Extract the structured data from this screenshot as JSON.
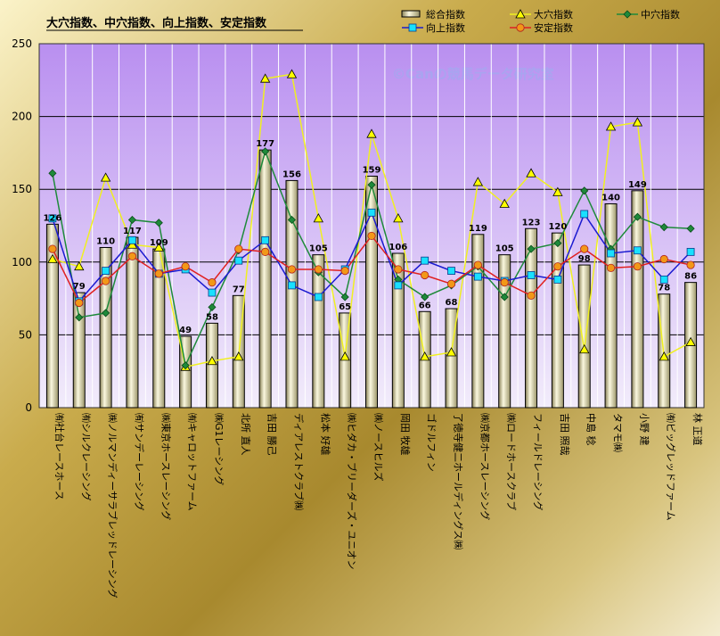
{
  "chart_data": {
    "type": "bar",
    "title": "大穴指数、中穴指数、向上指数、安定指数",
    "watermark": "©Canの競馬データ研究室",
    "ylim": [
      0,
      250
    ],
    "yticks": [
      "0",
      "50",
      "100",
      "150",
      "200",
      "250"
    ],
    "grid": true,
    "legend_position": "top-right",
    "categories": [
      "㈲社台レースホース",
      "㈲シルクレーシング",
      "㈱ノルマンディーサラブレッドレーシング",
      "㈲サンデーレーシング",
      "㈱東京ホースレーシング",
      "㈲キャロットファーム",
      "㈱G1レーシング",
      "北所 直人",
      "吉田 勝己",
      "ディアレストクラブ㈱",
      "松本 好雄",
      "㈱ヒダカ・ブリーダーズ・ユニオン",
      "㈱ノースヒルズ",
      "岡田 牧雄",
      "ゴドルフィン",
      "了徳寺健二ホールディングス㈱",
      "㈱京都ホースレーシング",
      "㈱ロードホースクラブ",
      "フィールドレーシング",
      "吉田 照哉",
      "中島 稔",
      "タマモ㈱",
      "小野 建",
      "㈲ビッグレッドファーム",
      "林 正道"
    ],
    "series": [
      {
        "name": "総合指数",
        "kind": "bar",
        "color": "#f4f1cf",
        "values": [
          126,
          79,
          110,
          117,
          109,
          49,
          58,
          77,
          177,
          156,
          105,
          65,
          159,
          106,
          66,
          68,
          119,
          105,
          123,
          120,
          98,
          140,
          149,
          78,
          86
        ],
        "labels": [
          "126",
          "79",
          "110",
          "117",
          "109",
          "49",
          "58",
          "77",
          "177",
          "156",
          "105",
          "65",
          "159",
          "106",
          "66",
          "68",
          "119",
          "105",
          "123",
          "120",
          "98",
          "140",
          "149",
          "78",
          "86"
        ]
      },
      {
        "name": "大穴指数",
        "kind": "line",
        "marker": "triangle",
        "color": "#ffff00",
        "stroke": "#f0f020",
        "values": [
          102,
          97,
          158,
          112,
          110,
          28,
          32,
          35,
          226,
          229,
          130,
          35,
          188,
          130,
          35,
          38,
          155,
          140,
          161,
          148,
          40,
          193,
          196,
          35,
          45
        ]
      },
      {
        "name": "中穴指数",
        "kind": "line",
        "marker": "diamond",
        "color": "#1e8a3a",
        "stroke": "#1e8a3a",
        "values": [
          161,
          62,
          65,
          129,
          127,
          29,
          69,
          108,
          176,
          129,
          93,
          76,
          153,
          88,
          76,
          84,
          97,
          76,
          109,
          113,
          149,
          109,
          131,
          124,
          123
        ]
      },
      {
        "name": "向上指数",
        "kind": "line",
        "marker": "square",
        "color": "#19e0ff",
        "stroke": "#1a1ad0",
        "values": [
          130,
          73,
          94,
          115,
          92,
          95,
          79,
          101,
          115,
          84,
          76,
          95,
          134,
          84,
          101,
          94,
          90,
          87,
          91,
          88,
          133,
          106,
          108,
          88,
          107
        ]
      },
      {
        "name": "安定指数",
        "kind": "line",
        "marker": "circle",
        "color": "#f29818",
        "stroke": "#e02020",
        "values": [
          109,
          72,
          87,
          104,
          92,
          97,
          86,
          109,
          107,
          95,
          95,
          94,
          118,
          95,
          91,
          85,
          98,
          86,
          77,
          97,
          109,
          96,
          97,
          102,
          98
        ]
      }
    ]
  }
}
